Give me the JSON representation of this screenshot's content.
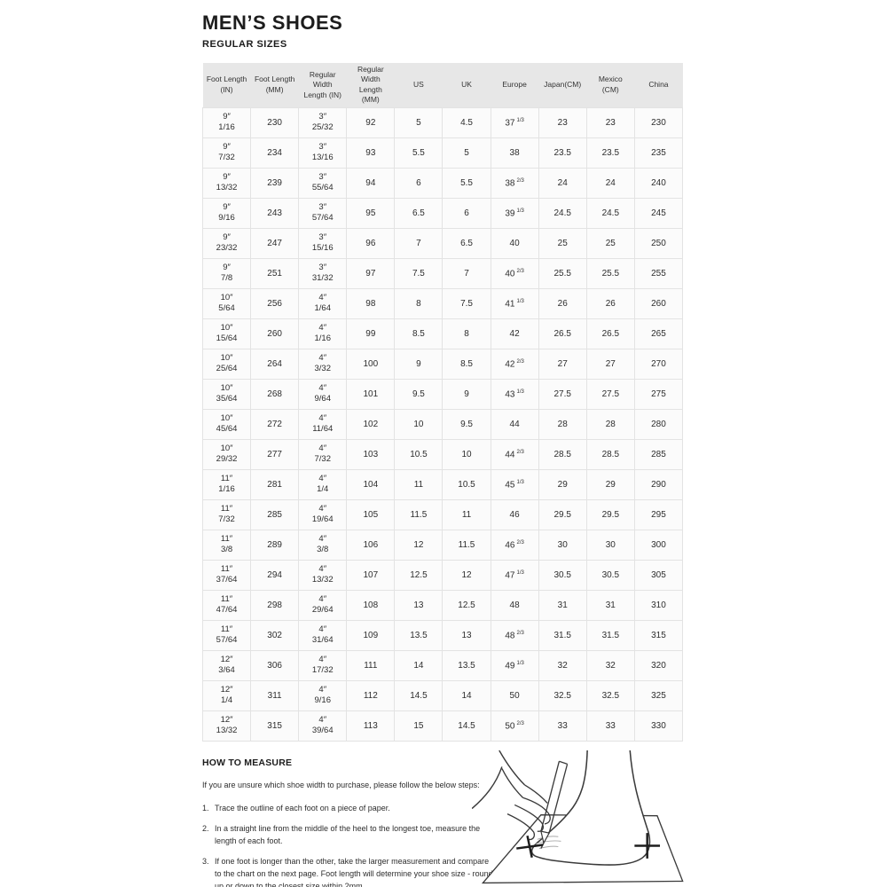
{
  "page": {
    "title": "MEN’S SHOES",
    "subtitle": "REGULAR SIZES"
  },
  "colors": {
    "header_bg": "#e7e7e7",
    "cell_bg": "#fbfbfb",
    "grid_border": "#e3e3e3",
    "text": "#2d2d2d"
  },
  "table": {
    "columns": [
      "Foot Length (IN)",
      "Foot Length (MM)",
      "Regular Width Length (IN)",
      "Regular Width Length (MM)",
      "US",
      "UK",
      "Europe",
      "Japan(CM)",
      "Mexico (CM)",
      "China"
    ],
    "rows": [
      [
        [
          "9″",
          "1/16"
        ],
        "230",
        [
          "3″",
          "25/32"
        ],
        "92",
        "5",
        "4.5",
        [
          "37",
          "1/3"
        ],
        "23",
        "23",
        "230"
      ],
      [
        [
          "9″",
          "7/32"
        ],
        "234",
        [
          "3″",
          "13/16"
        ],
        "93",
        "5.5",
        "5",
        [
          "38",
          ""
        ],
        "23.5",
        "23.5",
        "235"
      ],
      [
        [
          "9″",
          "13/32"
        ],
        "239",
        [
          "3″",
          "55/64"
        ],
        "94",
        "6",
        "5.5",
        [
          "38",
          "2/3"
        ],
        "24",
        "24",
        "240"
      ],
      [
        [
          "9″",
          "9/16"
        ],
        "243",
        [
          "3″",
          "57/64"
        ],
        "95",
        "6.5",
        "6",
        [
          "39",
          "1/3"
        ],
        "24.5",
        "24.5",
        "245"
      ],
      [
        [
          "9″",
          "23/32"
        ],
        "247",
        [
          "3″",
          "15/16"
        ],
        "96",
        "7",
        "6.5",
        [
          "40",
          ""
        ],
        "25",
        "25",
        "250"
      ],
      [
        [
          "9″",
          "7/8"
        ],
        "251",
        [
          "3″",
          "31/32"
        ],
        "97",
        "7.5",
        "7",
        [
          "40",
          "2/3"
        ],
        "25.5",
        "25.5",
        "255"
      ],
      [
        [
          "10″",
          "5/64"
        ],
        "256",
        [
          "4″",
          "1/64"
        ],
        "98",
        "8",
        "7.5",
        [
          "41",
          "1/3"
        ],
        "26",
        "26",
        "260"
      ],
      [
        [
          "10″",
          "15/64"
        ],
        "260",
        [
          "4″",
          "1/16"
        ],
        "99",
        "8.5",
        "8",
        [
          "42",
          ""
        ],
        "26.5",
        "26.5",
        "265"
      ],
      [
        [
          "10″",
          "25/64"
        ],
        "264",
        [
          "4″",
          "3/32"
        ],
        "100",
        "9",
        "8.5",
        [
          "42",
          "2/3"
        ],
        "27",
        "27",
        "270"
      ],
      [
        [
          "10″",
          "35/64"
        ],
        "268",
        [
          "4″",
          "9/64"
        ],
        "101",
        "9.5",
        "9",
        [
          "43",
          "1/3"
        ],
        "27.5",
        "27.5",
        "275"
      ],
      [
        [
          "10″",
          "45/64"
        ],
        "272",
        [
          "4″",
          "11/64"
        ],
        "102",
        "10",
        "9.5",
        [
          "44",
          ""
        ],
        "28",
        "28",
        "280"
      ],
      [
        [
          "10″",
          "29/32"
        ],
        "277",
        [
          "4″",
          "7/32"
        ],
        "103",
        "10.5",
        "10",
        [
          "44",
          "2/3"
        ],
        "28.5",
        "28.5",
        "285"
      ],
      [
        [
          "11″",
          "1/16"
        ],
        "281",
        [
          "4″",
          "1/4"
        ],
        "104",
        "11",
        "10.5",
        [
          "45",
          "1/3"
        ],
        "29",
        "29",
        "290"
      ],
      [
        [
          "11″",
          "7/32"
        ],
        "285",
        [
          "4″",
          "19/64"
        ],
        "105",
        "11.5",
        "11",
        [
          "46",
          ""
        ],
        "29.5",
        "29.5",
        "295"
      ],
      [
        [
          "11″",
          "3/8"
        ],
        "289",
        [
          "4″",
          "3/8"
        ],
        "106",
        "12",
        "11.5",
        [
          "46",
          "2/3"
        ],
        "30",
        "30",
        "300"
      ],
      [
        [
          "11″",
          "37/64"
        ],
        "294",
        [
          "4″",
          "13/32"
        ],
        "107",
        "12.5",
        "12",
        [
          "47",
          "1/3"
        ],
        "30.5",
        "30.5",
        "305"
      ],
      [
        [
          "11″",
          "47/64"
        ],
        "298",
        [
          "4″",
          "29/64"
        ],
        "108",
        "13",
        "12.5",
        [
          "48",
          ""
        ],
        "31",
        "31",
        "310"
      ],
      [
        [
          "11″",
          "57/64"
        ],
        "302",
        [
          "4″",
          "31/64"
        ],
        "109",
        "13.5",
        "13",
        [
          "48",
          "2/3"
        ],
        "31.5",
        "31.5",
        "315"
      ],
      [
        [
          "12″",
          "3/64"
        ],
        "306",
        [
          "4″",
          "17/32"
        ],
        "111",
        "14",
        "13.5",
        [
          "49",
          "1/3"
        ],
        "32",
        "32",
        "320"
      ],
      [
        [
          "12″",
          "1/4"
        ],
        "311",
        [
          "4″",
          "9/16"
        ],
        "112",
        "14.5",
        "14",
        [
          "50",
          ""
        ],
        "32.5",
        "32.5",
        "325"
      ],
      [
        [
          "12″",
          "13/32"
        ],
        "315",
        [
          "4″",
          "39/64"
        ],
        "113",
        "15",
        "14.5",
        [
          "50",
          "2/3"
        ],
        "33",
        "33",
        "330"
      ]
    ]
  },
  "how_to_measure": {
    "heading": "HOW TO MEASURE",
    "intro": "If you are unsure which shoe width to purchase, please follow the below steps:",
    "steps": [
      {
        "num": "1.",
        "text": "Trace the outline of each foot on a piece of paper."
      },
      {
        "num": "2.",
        "text": "In a straight line from the middle of the heel to the longest toe, measure the length of each foot."
      },
      {
        "num": "3.",
        "text": "If one foot is longer than the other, take the larger measurement and compare to the chart on the next page. Foot length will determine your shoe size - round up or down to the closest size within 2mm."
      }
    ]
  }
}
